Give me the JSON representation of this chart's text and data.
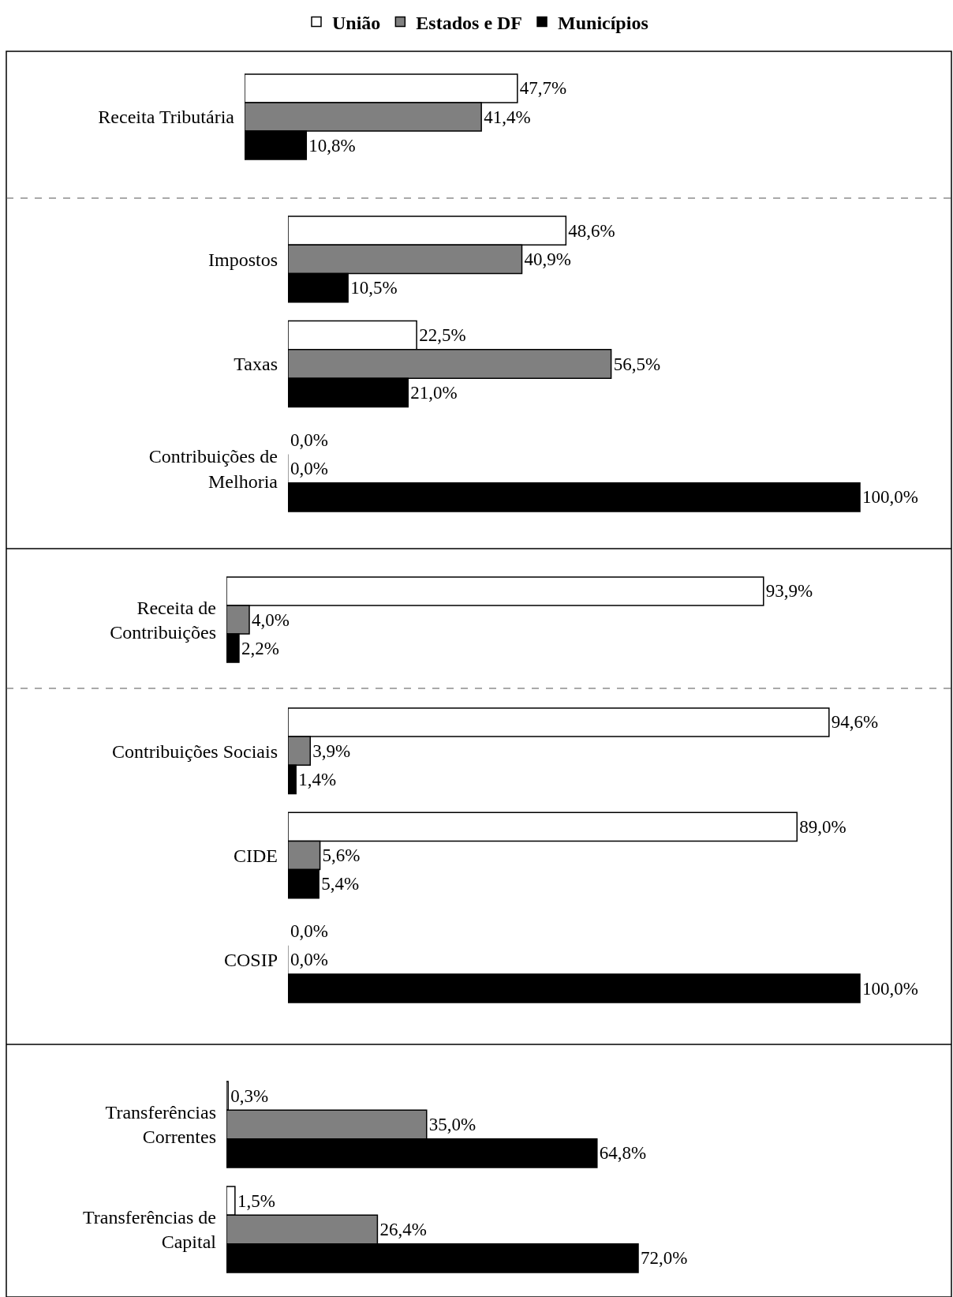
{
  "chart_data": [
    {
      "type": "bar",
      "orientation": "horizontal",
      "categories": [
        "Receita Tributária"
      ],
      "tick_labels": "y",
      "legend": "top",
      "series": [
        {
          "name": "União",
          "color": "#ffffff",
          "values": [
            47.7
          ],
          "value_labels": [
            "47,7%"
          ]
        },
        {
          "name": "Estados e DF",
          "color": "#808080",
          "values": [
            41.4
          ],
          "value_labels": [
            "41,4%"
          ]
        },
        {
          "name": "Municípios",
          "color": "#000000",
          "values": [
            10.8
          ],
          "value_labels": [
            "10,8%"
          ]
        }
      ]
    },
    {
      "type": "bar",
      "orientation": "horizontal",
      "categories": [
        "Impostos",
        "Taxas",
        "Contribuições de\nMelhoria"
      ],
      "tick_labels": "y",
      "series": [
        {
          "color": "#ffffff",
          "values": [
            48.6,
            22.5,
            0.0
          ],
          "value_labels": [
            "48,6%",
            "22,5%",
            "0,0%"
          ]
        },
        {
          "color": "#808080",
          "values": [
            40.9,
            56.5,
            0.0
          ],
          "value_labels": [
            "40,9%",
            "56,5%",
            "0,0%"
          ]
        },
        {
          "color": "#000000",
          "values": [
            10.5,
            21.0,
            100.0
          ],
          "value_labels": [
            "10,5%",
            "21,0%",
            "100,0%"
          ]
        }
      ]
    },
    {
      "type": "bar",
      "orientation": "horizontal",
      "categories": [
        "Receita de\nContribuições"
      ],
      "tick_labels": "y",
      "series": [
        {
          "color": "#ffffff",
          "values": [
            93.9
          ],
          "value_labels": [
            "93,9%"
          ]
        },
        {
          "color": "#808080",
          "values": [
            4.0
          ],
          "value_labels": [
            "4,0%"
          ]
        },
        {
          "color": "#000000",
          "values": [
            2.2
          ],
          "value_labels": [
            "2,2%"
          ]
        }
      ]
    },
    {
      "type": "bar",
      "orientation": "horizontal",
      "categories": [
        "Contribuições Sociais",
        "CIDE",
        "COSIP"
      ],
      "tick_labels": "y",
      "series": [
        {
          "color": "#ffffff",
          "values": [
            94.6,
            89.0,
            0.0
          ],
          "value_labels": [
            "94,6%",
            "89,0%",
            "0,0%"
          ]
        },
        {
          "color": "#808080",
          "values": [
            3.9,
            5.6,
            0.0
          ],
          "value_labels": [
            "3,9%",
            "5,6%",
            "0,0%"
          ]
        },
        {
          "color": "#000000",
          "values": [
            1.4,
            5.4,
            100.0
          ],
          "value_labels": [
            "1,4%",
            "5,4%",
            "100,0%"
          ]
        }
      ]
    },
    {
      "type": "bar",
      "orientation": "horizontal",
      "categories": [
        "Transferências\nCorrentes",
        "Transferências de\nCapital"
      ],
      "tick_labels": "y",
      "series": [
        {
          "color": "#ffffff",
          "values": [
            0.3,
            1.5
          ],
          "value_labels": [
            "0,3%",
            "1,5%"
          ]
        },
        {
          "color": "#808080",
          "values": [
            35.0,
            26.4
          ],
          "value_labels": [
            "35,0%",
            "26,4%"
          ]
        },
        {
          "color": "#000000",
          "values": [
            64.8,
            72.0
          ],
          "value_labels": [
            "64,8%",
            "72,0%"
          ]
        }
      ]
    }
  ]
}
